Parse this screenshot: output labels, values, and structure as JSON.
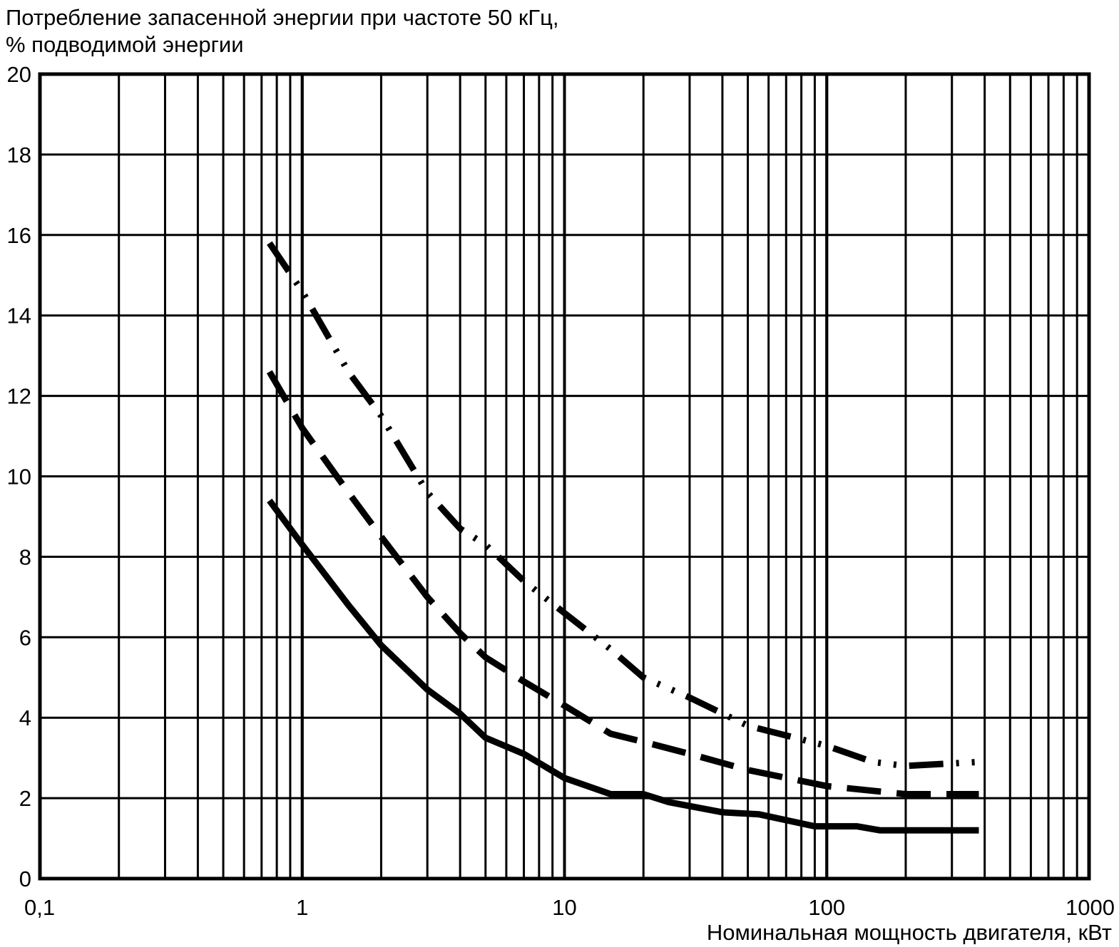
{
  "chart_data": {
    "type": "line",
    "title": "",
    "ylabel_lines": [
      "Потребление запасенной энергии при частоте 50 кГц,",
      "% подводимой энергии"
    ],
    "xlabel": "Номинальная мощность двигателя, кВт",
    "x_scale": "log",
    "xlim": [
      0.1,
      1000
    ],
    "ylim": [
      0,
      20
    ],
    "x_ticks": [
      0.1,
      1,
      10,
      100,
      1000
    ],
    "x_tick_labels": [
      "0,1",
      "1",
      "10",
      "100",
      "1000"
    ],
    "y_ticks": [
      0,
      2,
      4,
      6,
      8,
      10,
      12,
      14,
      16,
      18,
      20
    ],
    "y_tick_labels": [
      "0",
      "2",
      "4",
      "6",
      "8",
      "10",
      "12",
      "14",
      "16",
      "18",
      "20"
    ],
    "grid": true,
    "legend": "none",
    "series": [
      {
        "style": "solid",
        "color": "#000000",
        "points": [
          [
            0.75,
            9.4
          ],
          [
            1,
            8.3
          ],
          [
            1.5,
            6.8
          ],
          [
            2,
            5.8
          ],
          [
            3,
            4.7
          ],
          [
            4,
            4.1
          ],
          [
            5,
            3.5
          ],
          [
            7,
            3.1
          ],
          [
            10,
            2.5
          ],
          [
            15,
            2.1
          ],
          [
            20,
            2.1
          ],
          [
            25,
            1.9
          ],
          [
            40,
            1.65
          ],
          [
            55,
            1.6
          ],
          [
            90,
            1.3
          ],
          [
            130,
            1.3
          ],
          [
            160,
            1.2
          ],
          [
            380,
            1.2
          ]
        ]
      },
      {
        "style": "dashed",
        "color": "#000000",
        "points": [
          [
            0.75,
            12.6
          ],
          [
            1,
            11.2
          ],
          [
            1.5,
            9.6
          ],
          [
            2,
            8.5
          ],
          [
            3,
            7.0
          ],
          [
            4,
            6.1
          ],
          [
            5,
            5.5
          ],
          [
            7,
            4.9
          ],
          [
            10,
            4.3
          ],
          [
            15,
            3.6
          ],
          [
            20,
            3.4
          ],
          [
            30,
            3.1
          ],
          [
            50,
            2.7
          ],
          [
            100,
            2.3
          ],
          [
            200,
            2.1
          ],
          [
            380,
            2.1
          ]
        ]
      },
      {
        "style": "dash-dot",
        "color": "#000000",
        "points": [
          [
            0.75,
            15.8
          ],
          [
            1,
            14.6
          ],
          [
            1.5,
            12.6
          ],
          [
            2,
            11.5
          ],
          [
            3,
            9.6
          ],
          [
            4,
            8.7
          ],
          [
            5,
            8.3
          ],
          [
            7,
            7.4
          ],
          [
            10,
            6.6
          ],
          [
            15,
            5.7
          ],
          [
            20,
            5.0
          ],
          [
            30,
            4.5
          ],
          [
            50,
            3.8
          ],
          [
            100,
            3.3
          ],
          [
            150,
            2.9
          ],
          [
            200,
            2.8
          ],
          [
            380,
            2.9
          ]
        ]
      }
    ]
  }
}
